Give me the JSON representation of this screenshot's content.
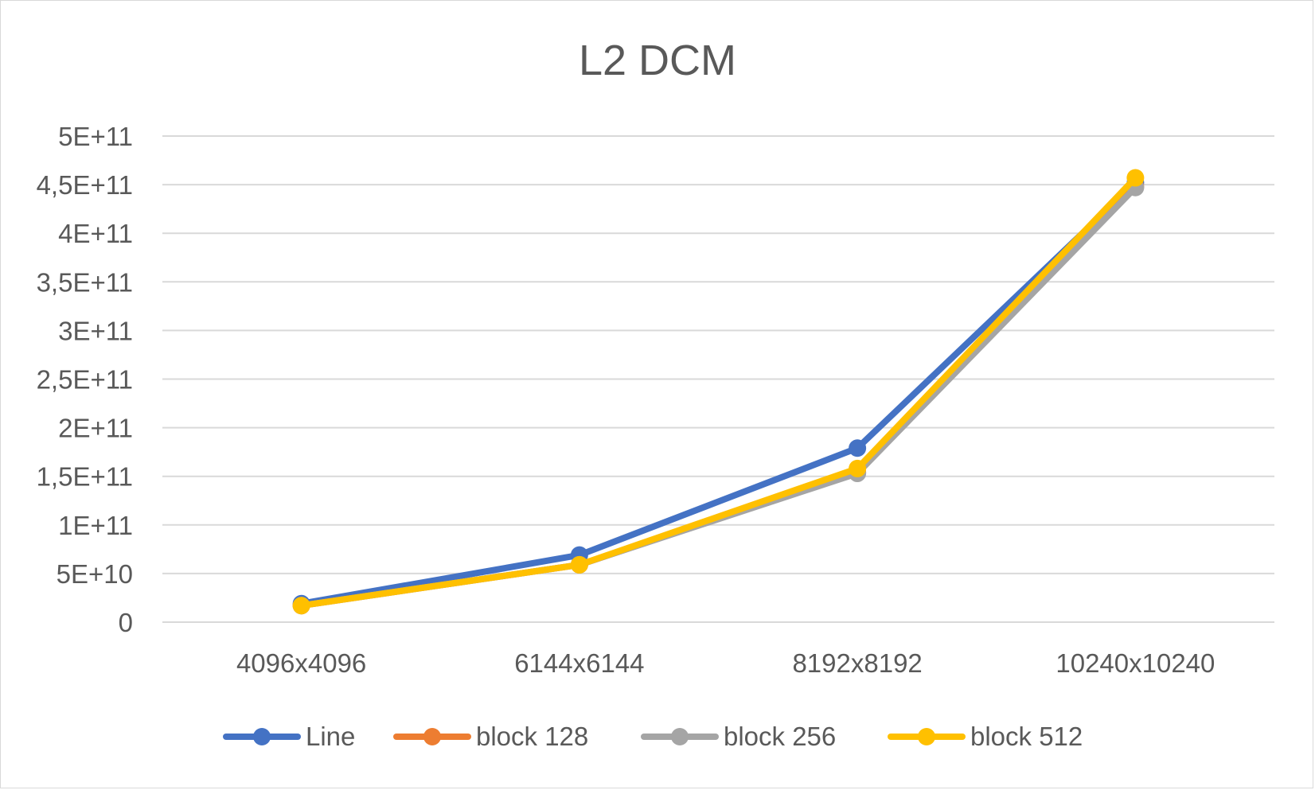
{
  "chart_data": {
    "type": "line",
    "title": "L2 DCM",
    "xlabel": "",
    "ylabel": "",
    "categories": [
      "4096x4096",
      "6144x6144",
      "8192x8192",
      "10240x10240"
    ],
    "ylim": [
      0,
      500000000000
    ],
    "y_ticks": [
      {
        "value": 0,
        "label": "0"
      },
      {
        "value": 50000000000,
        "label": "5E+10"
      },
      {
        "value": 100000000000,
        "label": "1E+11"
      },
      {
        "value": 150000000000,
        "label": "1,5E+11"
      },
      {
        "value": 200000000000,
        "label": "2E+11"
      },
      {
        "value": 250000000000,
        "label": "2,5E+11"
      },
      {
        "value": 300000000000,
        "label": "3E+11"
      },
      {
        "value": 350000000000,
        "label": "3,5E+11"
      },
      {
        "value": 400000000000,
        "label": "4E+11"
      },
      {
        "value": 450000000000,
        "label": "4,5E+11"
      },
      {
        "value": 500000000000,
        "label": "5E+11"
      }
    ],
    "grid": true,
    "legend_position": "bottom",
    "series": [
      {
        "name": "Line",
        "color": "#4472C4",
        "values": [
          19000000000,
          69000000000,
          179000000000,
          452000000000
        ]
      },
      {
        "name": "block 128",
        "color": "#ED7D31",
        "values": [
          17000000000,
          59000000000,
          154000000000,
          448000000000
        ]
      },
      {
        "name": "block 256",
        "color": "#A5A5A5",
        "values": [
          17000000000,
          59000000000,
          153000000000,
          447000000000
        ]
      },
      {
        "name": "block 512",
        "color": "#FFC000",
        "values": [
          17000000000,
          59000000000,
          158000000000,
          457000000000
        ]
      }
    ]
  }
}
